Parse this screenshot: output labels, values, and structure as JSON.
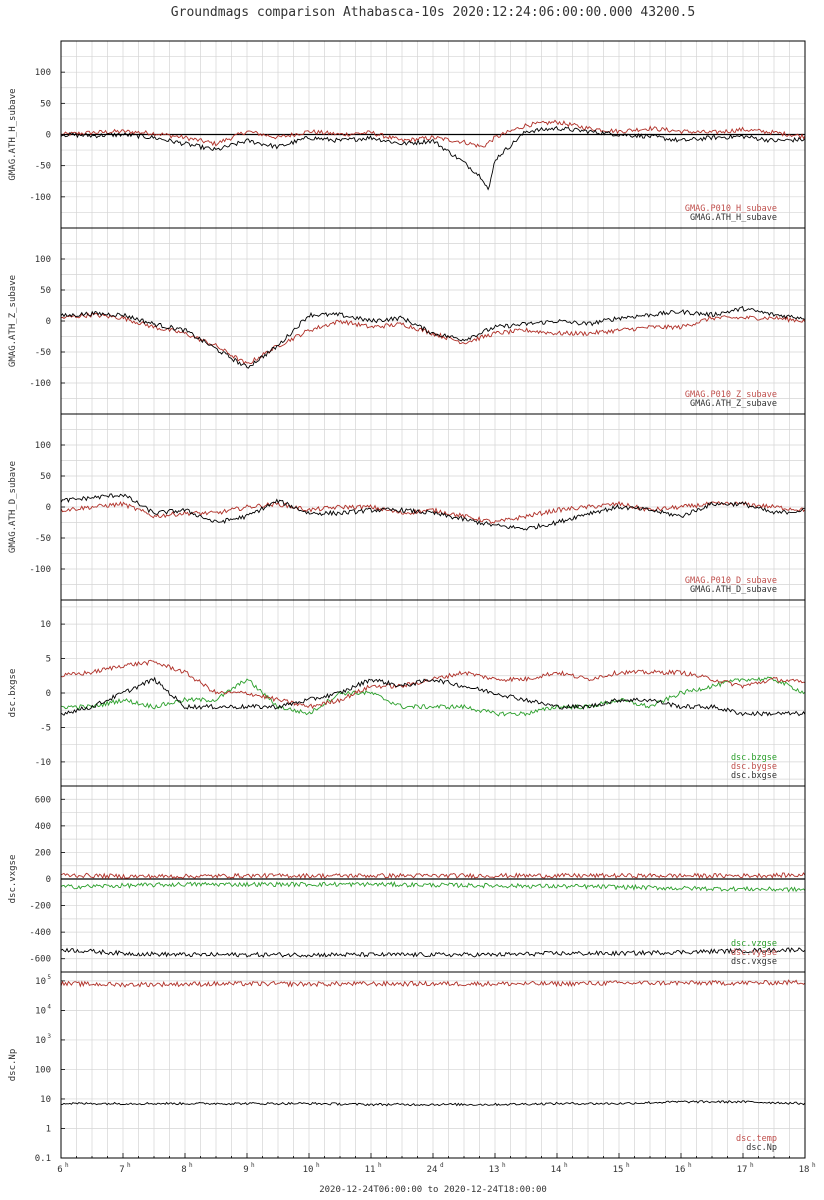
{
  "title": "Groundmags comparison Athabasca-10s 2020:12:24:06:00:00.000 43200.5",
  "footer": "2020-12-24T06:00:00 to 2020-12-24T18:00:00",
  "colors": {
    "red": "#b03028",
    "black": "#000000",
    "green": "#2ca02c",
    "grid": "#d4d4d4",
    "labelRed": "#c0504d"
  },
  "x_axis": {
    "ticks": [
      {
        "h": 6,
        "label": "6",
        "sup": "h"
      },
      {
        "h": 7,
        "label": "7",
        "sup": "h"
      },
      {
        "h": 8,
        "label": "8",
        "sup": "h"
      },
      {
        "h": 9,
        "label": "9",
        "sup": "h"
      },
      {
        "h": 10,
        "label": "10",
        "sup": "h"
      },
      {
        "h": 11,
        "label": "11",
        "sup": "h"
      },
      {
        "h": 12,
        "label": "24",
        "sup": "d"
      },
      {
        "h": 13,
        "label": "13",
        "sup": "h"
      },
      {
        "h": 14,
        "label": "14",
        "sup": "h"
      },
      {
        "h": 15,
        "label": "15",
        "sup": "h"
      },
      {
        "h": 16,
        "label": "16",
        "sup": "h"
      },
      {
        "h": 17,
        "label": "17",
        "sup": "h"
      },
      {
        "h": 18,
        "label": "18",
        "sup": "h"
      }
    ]
  },
  "chart_data": [
    {
      "type": "line",
      "ylabel": "GMAG.ATH_H_subave",
      "ylim": [
        -150,
        150
      ],
      "yticks": [
        100,
        50,
        0,
        -50,
        -100
      ],
      "series": [
        {
          "name": "GMAG.P010_H_subave",
          "color": "red",
          "x": [
            6,
            6.5,
            7,
            7.5,
            8,
            8.5,
            9,
            9.5,
            10,
            10.5,
            11,
            11.5,
            12,
            12.5,
            12.8,
            13,
            13.5,
            14,
            14.5,
            15,
            15.5,
            16,
            16.5,
            17,
            17.5,
            18
          ],
          "y": [
            0,
            3,
            5,
            2,
            -5,
            -15,
            5,
            -5,
            5,
            0,
            3,
            -10,
            -5,
            -12,
            -20,
            -5,
            15,
            20,
            10,
            5,
            10,
            5,
            3,
            8,
            3,
            -3
          ]
        },
        {
          "name": "GMAG.ATH_H_subave",
          "color": "black",
          "x": [
            6,
            6.5,
            7,
            7.5,
            8,
            8.5,
            9,
            9.5,
            10,
            10.5,
            11,
            11.5,
            12,
            12.5,
            12.8,
            12.9,
            13,
            13.5,
            14,
            14.5,
            15,
            15.5,
            16,
            16.5,
            17,
            17.5,
            18
          ],
          "y": [
            0,
            -2,
            0,
            -5,
            -15,
            -25,
            -10,
            -20,
            -5,
            -10,
            -5,
            -15,
            -10,
            -45,
            -70,
            -90,
            -40,
            5,
            10,
            5,
            0,
            -3,
            -10,
            -5,
            -3,
            -10,
            -8
          ]
        }
      ],
      "ref_line": 0
    },
    {
      "type": "line",
      "ylabel": "GMAG.ATH_Z_subave",
      "ylim": [
        -150,
        150
      ],
      "yticks": [
        100,
        50,
        0,
        -50,
        -100
      ],
      "series": [
        {
          "name": "GMAG.P010_Z_subave",
          "color": "red",
          "x": [
            6,
            6.5,
            7,
            7.5,
            8,
            8.5,
            9,
            9.5,
            10,
            10.5,
            11,
            11.5,
            12,
            12.5,
            13,
            13.5,
            14,
            14.5,
            15,
            15.5,
            16,
            16.5,
            17,
            17.5,
            18
          ],
          "y": [
            5,
            10,
            5,
            -10,
            -20,
            -40,
            -70,
            -40,
            -15,
            0,
            -10,
            -5,
            -20,
            -35,
            -20,
            -15,
            -20,
            -20,
            -15,
            -10,
            -10,
            5,
            5,
            5,
            0
          ]
        },
        {
          "name": "GMAG.ATH_Z_subave",
          "color": "black",
          "x": [
            6,
            6.5,
            7,
            7.5,
            8,
            8.5,
            9,
            9.5,
            10,
            10.5,
            11,
            11.5,
            12,
            12.5,
            13,
            13.5,
            14,
            14.5,
            15,
            15.5,
            16,
            16.5,
            17,
            17.5,
            18
          ],
          "y": [
            8,
            12,
            10,
            -5,
            -15,
            -45,
            -75,
            -40,
            10,
            10,
            0,
            5,
            -20,
            -30,
            -10,
            -5,
            0,
            -5,
            5,
            10,
            15,
            10,
            20,
            10,
            5
          ]
        }
      ],
      "ref_line": null
    },
    {
      "type": "line",
      "ylabel": "GMAG.ATH_D_subave",
      "ylim": [
        -150,
        150
      ],
      "yticks": [
        100,
        50,
        0,
        -50,
        -100
      ],
      "series": [
        {
          "name": "GMAG.P010_D_subave",
          "color": "red",
          "x": [
            6,
            6.5,
            7,
            7.5,
            8,
            8.5,
            9,
            9.5,
            10,
            10.5,
            11,
            11.5,
            12,
            12.5,
            13,
            13.5,
            14,
            14.5,
            15,
            15.5,
            16,
            16.5,
            17,
            17.5,
            18
          ],
          "y": [
            -5,
            0,
            5,
            -15,
            -10,
            -10,
            0,
            5,
            -5,
            0,
            0,
            -10,
            -5,
            -15,
            -25,
            -15,
            -5,
            0,
            5,
            -5,
            0,
            5,
            5,
            0,
            -5
          ]
        },
        {
          "name": "GMAG.ATH_D_subave",
          "color": "black",
          "x": [
            6,
            6.5,
            7,
            7.5,
            8,
            8.5,
            9,
            9.5,
            10,
            10.5,
            11,
            11.5,
            12,
            12.5,
            13,
            13.5,
            14,
            14.5,
            15,
            15.5,
            16,
            16.5,
            17,
            17.5,
            18
          ],
          "y": [
            10,
            15,
            20,
            -10,
            -5,
            -25,
            -15,
            10,
            -10,
            -10,
            -5,
            -5,
            -10,
            -20,
            -30,
            -35,
            -25,
            -10,
            0,
            -5,
            -15,
            5,
            5,
            -10,
            -5
          ]
        }
      ],
      "ref_line": null
    },
    {
      "type": "line",
      "ylabel": "dsc.bxgse",
      "ylim": [
        -13.5,
        13.5
      ],
      "yticks": [
        10,
        5,
        0,
        -5,
        -10
      ],
      "series": [
        {
          "name": "dsc.bzgse",
          "color": "green",
          "x": [
            6,
            6.5,
            7,
            7.5,
            8,
            8.5,
            9,
            9.5,
            10,
            10.5,
            11,
            11.5,
            12,
            12.5,
            13,
            13.5,
            14,
            14.5,
            15,
            15.5,
            16,
            16.5,
            17,
            17.5,
            18
          ],
          "y": [
            -2,
            -2,
            -1,
            -2,
            -1,
            -1,
            2,
            -2,
            -3,
            0,
            0,
            -2,
            -2,
            -2,
            -3,
            -3,
            -2,
            -2,
            -1,
            -2,
            0,
            1,
            2,
            2,
            0
          ]
        },
        {
          "name": "dsc.bygse",
          "color": "red",
          "x": [
            6,
            6.5,
            7,
            7.5,
            8,
            8.5,
            9,
            9.5,
            10,
            10.5,
            11,
            11.5,
            12,
            12.5,
            13,
            13.5,
            14,
            14.5,
            15,
            15.5,
            16,
            16.5,
            17,
            17.5,
            18
          ],
          "y": [
            2.5,
            3,
            4,
            4.5,
            3,
            0,
            0,
            -1,
            -2,
            -1,
            1,
            1,
            2,
            3,
            2,
            2,
            3,
            2,
            3,
            3,
            3,
            2,
            1,
            2,
            1.5
          ]
        },
        {
          "name": "dsc.bxgse",
          "color": "black",
          "x": [
            6,
            6.5,
            7,
            7.5,
            8,
            8.5,
            9,
            9.5,
            10,
            10.5,
            11,
            11.5,
            12,
            12.5,
            13,
            13.5,
            14,
            14.5,
            15,
            15.5,
            16,
            16.5,
            17,
            17.5,
            18
          ],
          "y": [
            -3,
            -2,
            0,
            2,
            -2,
            -2,
            -2,
            -2,
            -1,
            0,
            2,
            1,
            2,
            1,
            0,
            -1,
            -2,
            -2,
            -1,
            -1,
            -2,
            -2,
            -3,
            -3,
            -3
          ]
        }
      ],
      "ref_line": null
    },
    {
      "type": "line",
      "ylabel": "dsc.vxgse",
      "ylim": [
        -700,
        700
      ],
      "yticks": [
        600,
        400,
        200,
        0,
        -200,
        -400,
        -600
      ],
      "series": [
        {
          "name": "dsc.vzgse",
          "color": "green",
          "x": [
            6,
            7,
            8,
            9,
            10,
            11,
            12,
            13,
            14,
            15,
            16,
            17,
            18
          ],
          "y": [
            -60,
            -50,
            -40,
            -40,
            -40,
            -40,
            -45,
            -50,
            -55,
            -60,
            -70,
            -75,
            -80
          ]
        },
        {
          "name": "dsc.vygse",
          "color": "red",
          "x": [
            6,
            7,
            8,
            9,
            10,
            11,
            12,
            13,
            14,
            15,
            16,
            17,
            18
          ],
          "y": [
            30,
            20,
            20,
            25,
            25,
            25,
            25,
            25,
            25,
            25,
            25,
            25,
            30
          ]
        },
        {
          "name": "dsc.vxgse",
          "color": "black",
          "x": [
            6,
            7,
            8,
            9,
            10,
            11,
            12,
            13,
            14,
            15,
            16,
            17,
            18
          ],
          "y": [
            -530,
            -560,
            -570,
            -570,
            -570,
            -570,
            -570,
            -570,
            -560,
            -560,
            -550,
            -540,
            -530
          ]
        }
      ],
      "ref_line": 0
    },
    {
      "type": "line",
      "ylabel": "dsc.Np",
      "yscale": "log",
      "ylim": [
        0.1,
        200000
      ],
      "yticks": [
        100000,
        10000,
        1000,
        100,
        10,
        1,
        0.1
      ],
      "ytick_labels": [
        [
          "10",
          "5"
        ],
        [
          "10",
          "4"
        ],
        [
          "10",
          "3"
        ],
        [
          "100",
          ""
        ],
        [
          "10",
          ""
        ],
        [
          "1",
          ""
        ],
        [
          "0.1",
          ""
        ]
      ],
      "series": [
        {
          "name": "dsc.temp",
          "color": "red",
          "x": [
            6,
            7,
            8,
            9,
            10,
            11,
            12,
            13,
            14,
            15,
            16,
            17,
            18
          ],
          "y": [
            80000,
            75000,
            78000,
            80000,
            78000,
            80000,
            80000,
            80000,
            80000,
            85000,
            85000,
            85000,
            90000
          ]
        },
        {
          "name": "dsc.Np",
          "color": "black",
          "x": [
            6,
            7,
            8,
            9,
            10,
            11,
            12,
            13,
            14,
            15,
            16,
            17,
            18
          ],
          "y": [
            7,
            7,
            7,
            7,
            7,
            6.5,
            6.5,
            6.5,
            7,
            7,
            8,
            8,
            7
          ]
        }
      ],
      "ref_line": null
    }
  ]
}
